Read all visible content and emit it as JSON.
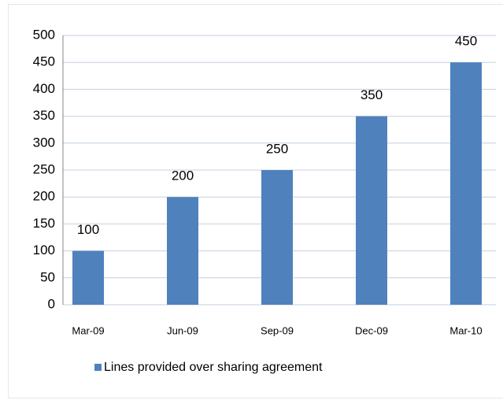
{
  "chart_data": {
    "type": "bar",
    "categories": [
      "Mar-09",
      "Jun-09",
      "Sep-09",
      "Dec-09",
      "Mar-10"
    ],
    "series": [
      {
        "name": "Lines provided over sharing agreement",
        "color": "#4f81bd",
        "values": [
          100,
          200,
          250,
          350,
          450
        ]
      }
    ],
    "ylim": [
      0,
      500
    ],
    "yticks": [
      0,
      50,
      100,
      150,
      200,
      250,
      300,
      350,
      400,
      450,
      500
    ],
    "grid": true,
    "legend": "bottom"
  }
}
